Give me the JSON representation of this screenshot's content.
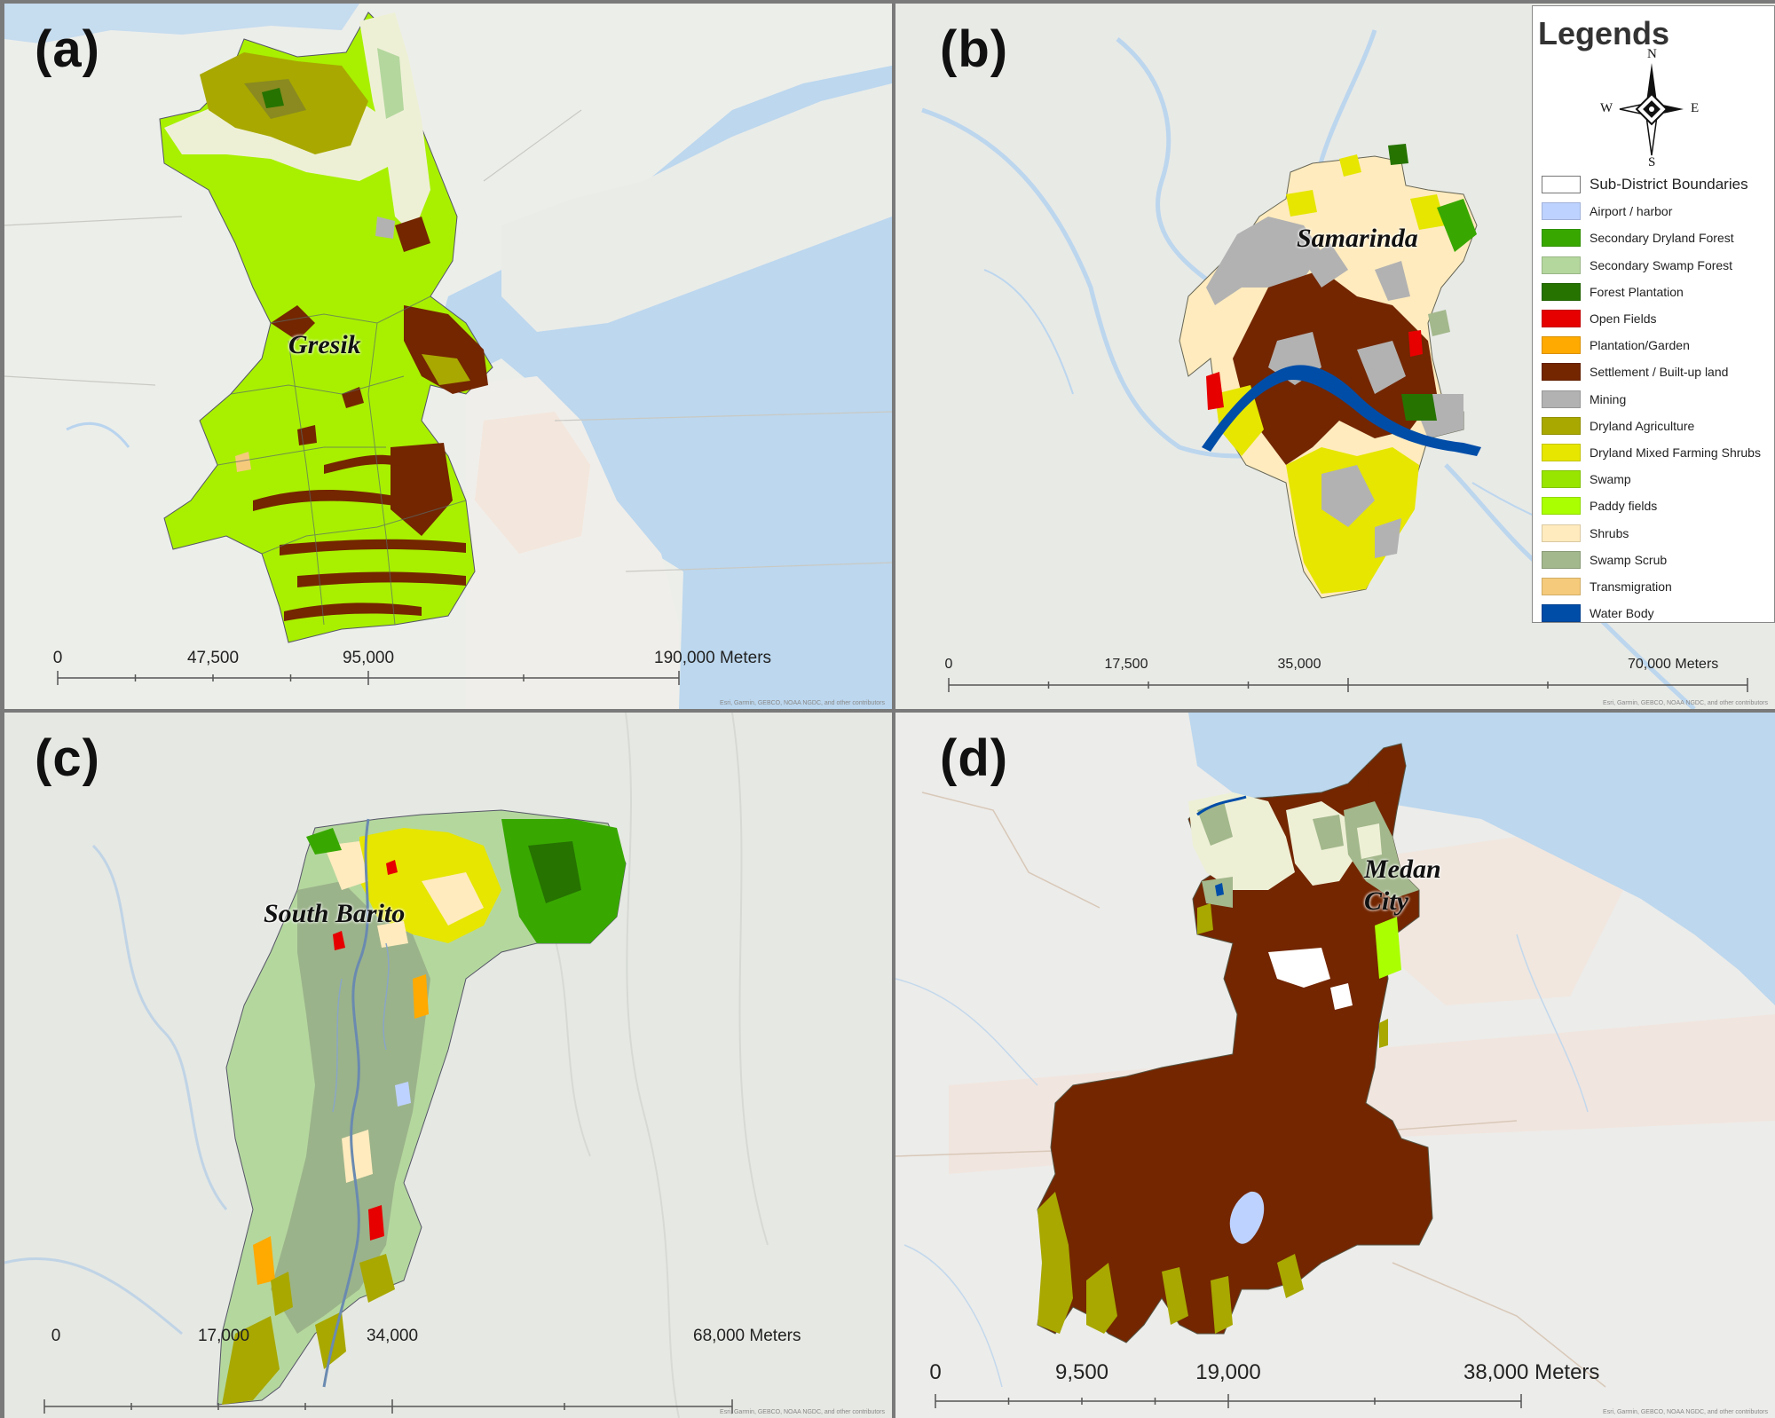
{
  "panels": [
    {
      "letter": "(a)",
      "place": "Gresik",
      "scale_ticks": [
        "0",
        "47,500",
        "95,000",
        "190,000 Meters"
      ],
      "attribution": "Esri, Garmin, GEBCO, NOAA NGDC, and other contributors"
    },
    {
      "letter": "(b)",
      "place": "Samarinda",
      "scale_ticks": [
        "0",
        "17,500",
        "35,000",
        "70,000 Meters"
      ],
      "attribution": "Esri, Garmin, GEBCO, NOAA NGDC, and other contributors"
    },
    {
      "letter": "(c)",
      "place": "South Barito",
      "scale_ticks": [
        "0",
        "17,000",
        "34,000",
        "68,000 Meters"
      ],
      "attribution": "Esri, Garmin, GEBCO, NOAA NGDC, and other contributors"
    },
    {
      "letter": "(d)",
      "place_line1": "Medan",
      "place_line2": "City",
      "scale_ticks": [
        "0",
        "9,500",
        "19,000",
        "38,000 Meters"
      ],
      "attribution": "Esri, Garmin, GEBCO, NOAA NGDC, and other contributors"
    }
  ],
  "legend": {
    "title": "Legends",
    "compass": {
      "n": "N",
      "s": "S",
      "e": "E",
      "w": "W"
    },
    "items": [
      {
        "label": "Sub-District Boundaries",
        "color": "#ffffff",
        "outline": true
      },
      {
        "label": "Airport / harbor",
        "color": "#bed2ff"
      },
      {
        "label": "Secondary Dryland Forest",
        "color": "#38a800"
      },
      {
        "label": "Secondary Swamp Forest",
        "color": "#b4d79e"
      },
      {
        "label": "Forest Plantation",
        "color": "#267300"
      },
      {
        "label": "Open Fields",
        "color": "#e60000"
      },
      {
        "label": "Plantation/Garden",
        "color": "#ffaa00"
      },
      {
        "label": "Settlement / Built-up land",
        "color": "#732600"
      },
      {
        "label": "Mining",
        "color": "#b2b2b2"
      },
      {
        "label": "Dryland Agriculture",
        "color": "#a8a800"
      },
      {
        "label": "Dryland Mixed Farming Shrubs",
        "color": "#e6e600"
      },
      {
        "label": "Swamp",
        "color": "#98e600"
      },
      {
        "label": "Paddy fields",
        "color": "#aaff00"
      },
      {
        "label": "Shrubs",
        "color": "#ffebbe"
      },
      {
        "label": "Swamp Scrub",
        "color": "#a3b88c"
      },
      {
        "label": "Transmigration",
        "color": "#f5ca7a"
      },
      {
        "label": "Water Body",
        "color": "#004da8"
      }
    ]
  }
}
